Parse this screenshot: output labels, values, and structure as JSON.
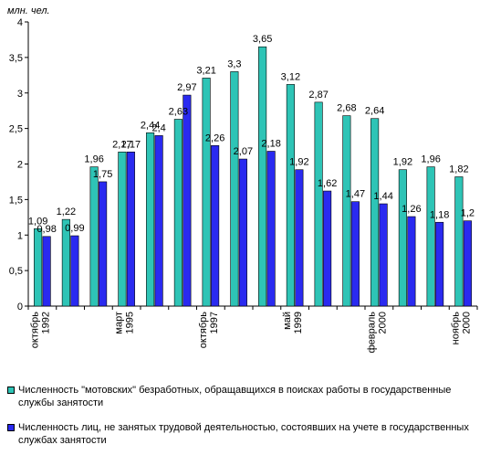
{
  "unit_label": "млн. чел.",
  "legend": [
    {
      "label": "Численность \"мотовских\" безработных, обращавщихся в поисках работы в государственные службы занятости",
      "color": "#2ec4b6"
    },
    {
      "label": "Численность лиц, не занятых трудовой деятельностью, состоявших на учете в государственных службах занятости",
      "color": "#2a2af0"
    }
  ],
  "chart_data": {
    "type": "bar",
    "ylim": [
      0,
      4
    ],
    "yticks": [
      "0",
      "0,5",
      "1",
      "1,5",
      "2",
      "2,5",
      "3",
      "3,5",
      "4"
    ],
    "grid": false,
    "legend_position": "bottom",
    "x_tick_labels": [
      {
        "index": 0,
        "lines": [
          "октябрь",
          "1992"
        ]
      },
      {
        "index": 3,
        "lines": [
          "март",
          "1995"
        ]
      },
      {
        "index": 6,
        "lines": [
          "октябрь",
          "1997"
        ]
      },
      {
        "index": 9,
        "lines": [
          "май",
          "1999"
        ]
      },
      {
        "index": 12,
        "lines": [
          "февраль",
          "2000"
        ]
      },
      {
        "index": 15,
        "lines": [
          "ноябрь",
          "2000"
        ]
      }
    ],
    "series": [
      {
        "name": "Численность \"мотовских\" безработных, обращавщихся в поисках работы в государственные службы занятости",
        "values": [
          1.09,
          1.22,
          1.96,
          2.17,
          2.44,
          2.63,
          3.21,
          3.3,
          3.65,
          3.12,
          2.87,
          2.68,
          2.64,
          1.92,
          1.96,
          1.82
        ],
        "labels": [
          "1,09",
          "1,22",
          "1,96",
          "2,17",
          "2,44",
          "2,63",
          "3,21",
          "3,3",
          "3,65",
          "3,12",
          "2,87",
          "2,68",
          "2,64",
          "1,92",
          "1,96",
          "1,82"
        ]
      },
      {
        "name": "Численность лиц, не занятых трудовой деятельностью, состоявших на учете в государственных службах занятости",
        "values": [
          0.98,
          0.99,
          1.75,
          2.17,
          2.4,
          2.97,
          2.26,
          2.07,
          2.18,
          1.92,
          1.62,
          1.47,
          1.44,
          1.26,
          1.18,
          1.2
        ],
        "labels": [
          "0,98",
          "0,99",
          "1,75",
          "2,17",
          "2,4",
          "2,97",
          "2,26",
          "2,07",
          "2,18",
          "1,92",
          "1,62",
          "1,47",
          "1,44",
          "1,26",
          "1,18",
          "1,2"
        ]
      }
    ]
  }
}
